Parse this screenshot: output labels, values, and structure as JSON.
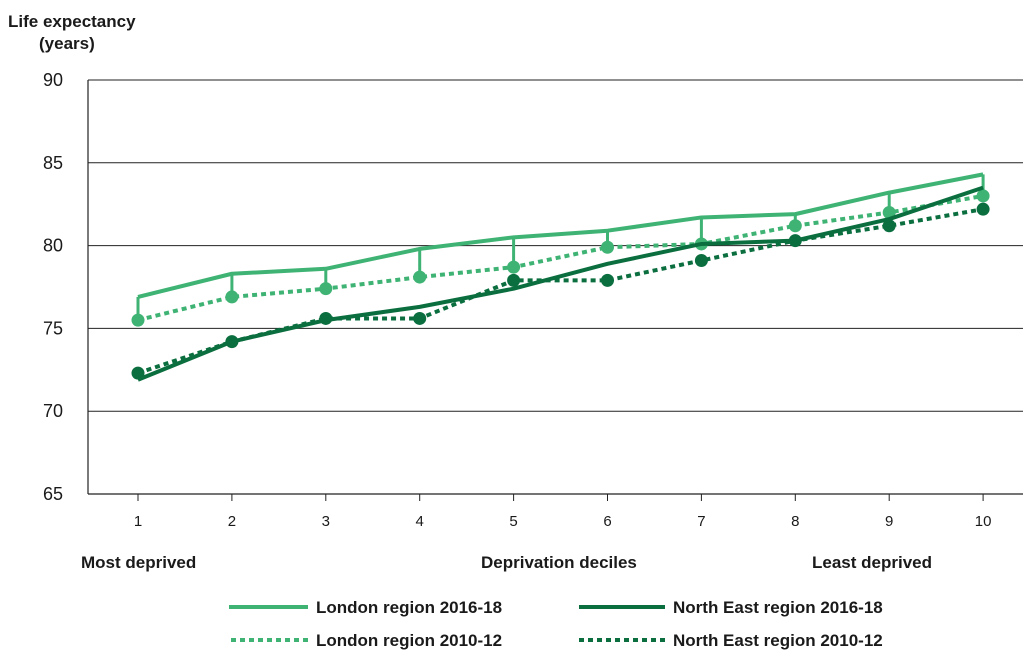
{
  "chart_data": {
    "type": "line",
    "ylabel_line1": "Life expectancy",
    "ylabel_line2": "(years)",
    "xlabel": "Deprivation deciles",
    "x_left_label": "Most deprived",
    "x_right_label": "Least deprived",
    "categories": [
      "1",
      "2",
      "3",
      "4",
      "5",
      "6",
      "7",
      "8",
      "9",
      "10"
    ],
    "ylim": [
      65,
      90
    ],
    "yticks": [
      65,
      70,
      75,
      80,
      85,
      90
    ],
    "grid": true,
    "legend_position": "bottom",
    "colors": {
      "london": "#3fb374",
      "north_east": "#0a6e3f"
    },
    "series": [
      {
        "name": "London region 2016-18",
        "color": "#3fb374",
        "style": "solid",
        "values": [
          76.9,
          78.3,
          78.6,
          79.8,
          80.5,
          80.9,
          81.7,
          81.9,
          83.2,
          84.3
        ]
      },
      {
        "name": "London region 2010-12",
        "color": "#3fb374",
        "style": "dotted",
        "markers": true,
        "values": [
          75.5,
          76.9,
          77.4,
          78.1,
          78.7,
          79.9,
          80.1,
          81.2,
          82.0,
          83.0
        ]
      },
      {
        "name": "North East region 2016-18",
        "color": "#0a6e3f",
        "style": "solid",
        "values": [
          71.9,
          74.2,
          75.5,
          76.3,
          77.4,
          78.9,
          80.1,
          80.3,
          81.6,
          83.5
        ]
      },
      {
        "name": "North East region 2010-12",
        "color": "#0a6e3f",
        "style": "dotted",
        "markers": true,
        "values": [
          72.3,
          74.2,
          75.6,
          75.6,
          77.9,
          77.9,
          79.1,
          80.3,
          81.2,
          82.2
        ]
      }
    ]
  },
  "legend": {
    "london_2016": "London region 2016-18",
    "north_east_2016": "North East region 2016-18",
    "london_2010": "London region 2010-12",
    "north_east_2010": "North East region 2010-12"
  }
}
